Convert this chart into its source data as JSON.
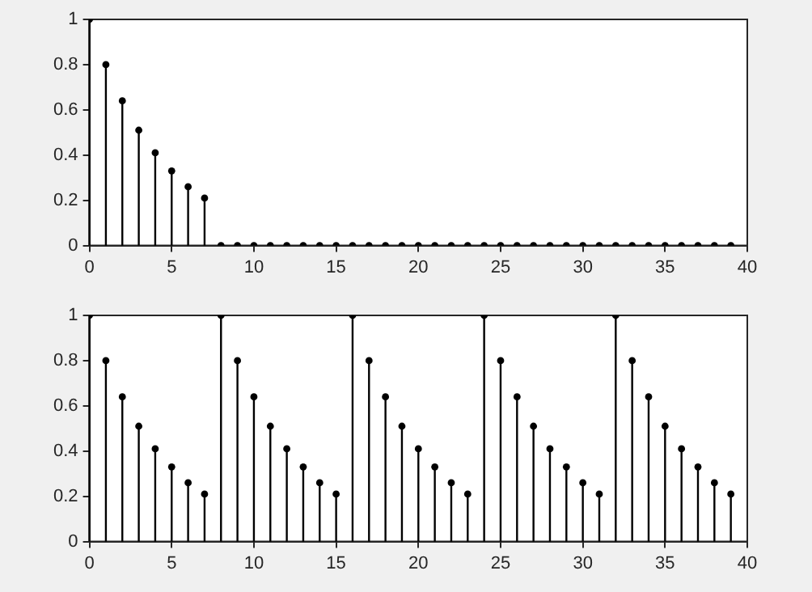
{
  "chart_data": [
    {
      "type": "lollipop",
      "x": [
        0,
        1,
        2,
        3,
        4,
        5,
        6,
        7,
        8,
        9,
        10,
        11,
        12,
        13,
        14,
        15,
        16,
        17,
        18,
        19,
        20,
        21,
        22,
        23,
        24,
        25,
        26,
        27,
        28,
        29,
        30,
        31,
        32,
        33,
        34,
        35,
        36,
        37,
        38,
        39
      ],
      "values": [
        1,
        0.8,
        0.64,
        0.51,
        0.41,
        0.33,
        0.26,
        0.21,
        0,
        0,
        0,
        0,
        0,
        0,
        0,
        0,
        0,
        0,
        0,
        0,
        0,
        0,
        0,
        0,
        0,
        0,
        0,
        0,
        0,
        0,
        0,
        0,
        0,
        0,
        0,
        0,
        0,
        0,
        0,
        0
      ],
      "color": "#000000",
      "marker": "circle",
      "xlim": [
        0,
        40
      ],
      "ylim": [
        0,
        1
      ],
      "xticks": [
        0,
        5,
        10,
        15,
        20,
        25,
        30,
        35,
        40
      ],
      "yticks": [
        0,
        0.2,
        0.4,
        0.6,
        0.8,
        1
      ]
    },
    {
      "type": "lollipop",
      "x": [
        0,
        1,
        2,
        3,
        4,
        5,
        6,
        7,
        8,
        9,
        10,
        11,
        12,
        13,
        14,
        15,
        16,
        17,
        18,
        19,
        20,
        21,
        22,
        23,
        24,
        25,
        26,
        27,
        28,
        29,
        30,
        31,
        32,
        33,
        34,
        35,
        36,
        37,
        38,
        39
      ],
      "values": [
        1,
        0.8,
        0.64,
        0.51,
        0.41,
        0.33,
        0.26,
        0.21,
        1,
        0.8,
        0.64,
        0.51,
        0.41,
        0.33,
        0.26,
        0.21,
        1,
        0.8,
        0.64,
        0.51,
        0.41,
        0.33,
        0.26,
        0.21,
        1,
        0.8,
        0.64,
        0.51,
        0.41,
        0.33,
        0.26,
        0.21,
        1,
        0.8,
        0.64,
        0.51,
        0.41,
        0.33,
        0.26,
        0.21
      ],
      "color": "#000000",
      "marker": "circle",
      "xlim": [
        0,
        40
      ],
      "ylim": [
        0,
        1
      ],
      "xticks": [
        0,
        5,
        10,
        15,
        20,
        25,
        30,
        35,
        40
      ],
      "yticks": [
        0,
        0.2,
        0.4,
        0.6,
        0.8,
        1
      ]
    }
  ]
}
